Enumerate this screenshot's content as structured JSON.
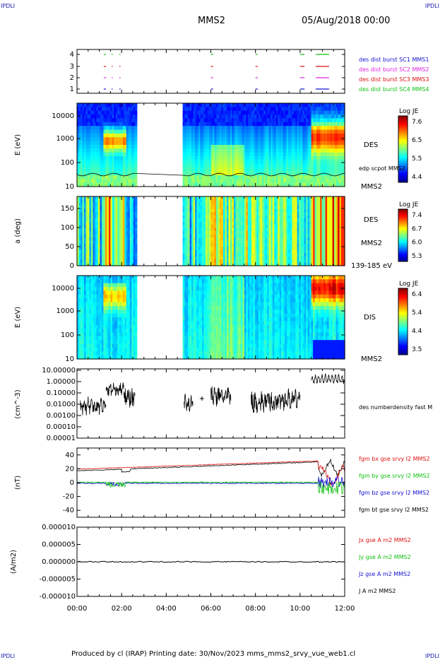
{
  "corners": {
    "tl": "IPDLI",
    "tr": "IPDLI",
    "bl": "IPDLI",
    "br": "IPDLI"
  },
  "header": {
    "spacecraft": "MMS2",
    "date": "05/Aug/2018 00:00"
  },
  "footer": {
    "text": "Produced by cl (IRAP)   Printing date: 30/Nov/2023   mms_mms2_srvy_vue_web1.cl"
  },
  "chart_data": [
    {
      "type": "timeline",
      "panel": "burst availability",
      "y_ticks": [
        "4",
        "3",
        "2",
        "1"
      ],
      "legend": [
        {
          "label": "des dist burst SC1 MMS1",
          "color": "#1010d0"
        },
        {
          "label": "des dist burst SC2 MMS2",
          "color": "#e020e0"
        },
        {
          "label": "des dist burst SC3 MMS3",
          "color": "#e01010"
        },
        {
          "label": "des dist burst SC4 MMS4",
          "color": "#10c010"
        }
      ],
      "bursts_hours": [
        [
          1.2,
          1.3
        ],
        [
          1.55,
          1.6
        ],
        [
          1.9,
          1.95
        ],
        [
          6.0,
          6.1
        ],
        [
          8.0,
          8.1
        ],
        [
          10.0,
          10.2
        ],
        [
          10.7,
          11.3
        ]
      ]
    },
    {
      "type": "heatmap",
      "panel": "DES energy spectrogram",
      "ylabel": "E (eV)",
      "ylim": [
        10,
        30000
      ],
      "y_scale": "log",
      "y_ticks": [
        "10000",
        "1000",
        "100",
        "10"
      ],
      "colorbar": {
        "label": "Log JE",
        "ticks": [
          "7.6",
          "6.5",
          "5.5",
          "4.4"
        ]
      },
      "side_labels": [
        "DES",
        "edp scpot MMS2",
        "MMS2"
      ],
      "data_gap_hours": [
        2.7,
        4.7
      ]
    },
    {
      "type": "heatmap",
      "panel": "DES pitch angle",
      "ylabel": "a (deg)",
      "ylim": [
        0,
        180
      ],
      "y_ticks": [
        "150",
        "100",
        "50",
        "0"
      ],
      "colorbar": {
        "label": "Log JE",
        "ticks": [
          "7.4",
          "6.7",
          "6.0",
          "5.3"
        ]
      },
      "side_labels": [
        "DES",
        "MMS2",
        "139-185 eV"
      ],
      "data_gap_hours": [
        2.7,
        4.7
      ]
    },
    {
      "type": "heatmap",
      "panel": "DIS energy spectrogram",
      "ylabel": "E (eV)",
      "ylim": [
        10,
        30000
      ],
      "y_scale": "log",
      "y_ticks": [
        "10000",
        "1000",
        "100",
        "10"
      ],
      "colorbar": {
        "label": "Log JE",
        "ticks": [
          "6.4",
          "5.4",
          "4.4",
          "3.5"
        ]
      },
      "side_labels": [
        "DIS",
        "MMS2"
      ],
      "data_gap_hours": [
        2.7,
        4.7
      ]
    },
    {
      "type": "line",
      "panel": "number density",
      "ylabel": "(cm^-3)",
      "y_scale": "log",
      "y_ticks": [
        "10.00000",
        "1.00000",
        "0.10000",
        "0.01000",
        "0.00100",
        "0.00010",
        "0.00001"
      ],
      "series": [
        {
          "name": "des numberdensity fast M",
          "color": "#000000"
        }
      ]
    },
    {
      "type": "line",
      "panel": "magnetic field",
      "ylabel": "(nT)",
      "ylim": [
        -50,
        50
      ],
      "y_ticks": [
        "40",
        "20",
        "0",
        "-20",
        "-40"
      ],
      "series": [
        {
          "name": "fgm bx gse srvy l2 MMS2",
          "color": "#e01010"
        },
        {
          "name": "fgm by gse srvy l2 MMS2",
          "color": "#10c010"
        },
        {
          "name": "fgm bz gse srvy l2 MMS2",
          "color": "#1010d0"
        },
        {
          "name": "fgm bt gse srvy l2 MMS2",
          "color": "#000000"
        }
      ]
    },
    {
      "type": "line",
      "panel": "current density",
      "ylabel": "(A/m2)",
      "ylim": [
        -1e-05,
        1e-05
      ],
      "y_ticks": [
        "0.000010",
        "0.000005",
        "0.000000",
        "-0.000005",
        "-0.000010"
      ],
      "series": [
        {
          "name": "Jx gse A m2 MMS2",
          "color": "#e01010"
        },
        {
          "name": "Jy gse A m2 MMS2",
          "color": "#10c010"
        },
        {
          "name": "Jz gse A m2 MMS2",
          "color": "#1010d0"
        },
        {
          "name": "J A m2 MMS2",
          "color": "#000000"
        }
      ]
    }
  ],
  "x_axis": {
    "ticks": [
      "00:00",
      "02:00",
      "04:00",
      "06:00",
      "08:00",
      "10:00",
      "12:00"
    ],
    "xlim_hours": [
      0,
      12
    ]
  }
}
